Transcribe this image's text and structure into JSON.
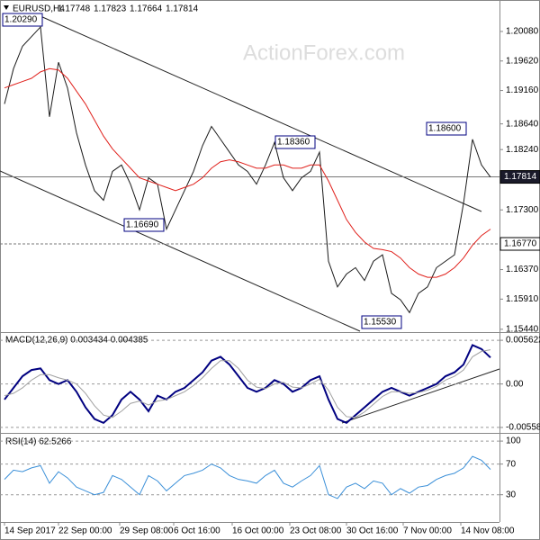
{
  "chart_data": [
    {
      "type": "line",
      "title": "EURUSD,H4",
      "quote": [
        "1.17748",
        "1.17823",
        "1.17664",
        "1.17814"
      ],
      "watermark": "ActionForex.com",
      "series": [
        {
          "color": "#1a1a1a",
          "values": [
            1.1895,
            1.195,
            1.1985,
            1.2,
            1.2015,
            1.1875,
            1.196,
            1.192,
            1.185,
            1.18,
            1.176,
            1.1745,
            1.179,
            1.18,
            1.177,
            1.173,
            1.178,
            1.177,
            1.17,
            1.173,
            1.176,
            1.179,
            1.183,
            1.186,
            1.184,
            1.182,
            1.18,
            1.179,
            1.177,
            1.18,
            1.1835,
            1.178,
            1.176,
            1.178,
            1.179,
            1.182,
            1.165,
            1.161,
            1.163,
            1.164,
            1.162,
            1.165,
            1.166,
            1.16,
            1.159,
            1.157,
            1.16,
            1.161,
            1.164,
            1.165,
            1.166,
            1.174,
            1.184,
            1.18,
            1.1781
          ]
        },
        {
          "color": "#e0201b",
          "values": [
            1.192,
            1.1925,
            1.193,
            1.1935,
            1.1945,
            1.195,
            1.1948,
            1.1935,
            1.1915,
            1.1895,
            1.187,
            1.1845,
            1.1825,
            1.181,
            1.1795,
            1.178,
            1.1775,
            1.177,
            1.1765,
            1.176,
            1.1765,
            1.177,
            1.178,
            1.1795,
            1.1805,
            1.1808,
            1.1805,
            1.18,
            1.1795,
            1.1795,
            1.18,
            1.18,
            1.1795,
            1.1795,
            1.18,
            1.18,
            1.1775,
            1.1745,
            1.1715,
            1.1695,
            1.168,
            1.167,
            1.1668,
            1.1665,
            1.1655,
            1.164,
            1.163,
            1.1625,
            1.1625,
            1.163,
            1.164,
            1.1655,
            1.1675,
            1.169,
            1.17
          ]
        }
      ],
      "ylim": [
        1.1541,
        1.205
      ],
      "yticks": [
        {
          "value": 1.2008,
          "label": "1.20080"
        },
        {
          "value": 1.1962,
          "label": "1.19620"
        },
        {
          "value": 1.1916,
          "label": "1.19160"
        },
        {
          "value": 1.1864,
          "label": "1.18640"
        },
        {
          "value": 1.1824,
          "label": "1.18240"
        },
        {
          "value": 1.173,
          "label": "1.17300"
        },
        {
          "value": 1.1637,
          "label": "1.16370"
        },
        {
          "value": 1.1591,
          "label": "1.15910"
        },
        {
          "value": 1.1544,
          "label": "1.15440"
        }
      ],
      "levels": [
        {
          "value": 1.17814,
          "label": "1.17814"
        },
        {
          "value": 1.1677,
          "label": "1.16770"
        }
      ],
      "annotations": [
        "1.20290",
        "1.16690",
        "1.18360",
        "1.18600",
        "1.15530"
      ]
    },
    {
      "type": "line",
      "title": "MACD(12,26,9) 0.003434 0.004385",
      "series": [
        {
          "color": "#000080",
          "values": [
            -0.002,
            -0.0005,
            0.001,
            0.0018,
            0.002,
            0.0005,
            0.0,
            0.0005,
            -0.001,
            -0.003,
            -0.0045,
            -0.005,
            -0.004,
            -0.002,
            -0.001,
            -0.002,
            -0.0035,
            -0.0015,
            -0.002,
            -0.001,
            -0.0005,
            0.0005,
            0.0015,
            0.003,
            0.0035,
            0.0025,
            0.001,
            -0.0005,
            -0.001,
            -0.0005,
            0.0005,
            0.0,
            -0.001,
            -0.0005,
            0.0005,
            0.001,
            -0.002,
            -0.0045,
            -0.005,
            -0.004,
            -0.003,
            -0.002,
            -0.001,
            -0.0005,
            -0.001,
            -0.0015,
            -0.001,
            -0.0005,
            0.0,
            0.001,
            0.0015,
            0.0025,
            0.005,
            0.0045,
            0.0034
          ]
        },
        {
          "color": "#a0a0a0",
          "values": [
            -0.0015,
            -0.0012,
            -0.0005,
            0.0005,
            0.0012,
            0.0012,
            0.0008,
            0.0005,
            0.0,
            -0.0012,
            -0.0028,
            -0.004,
            -0.0043,
            -0.0035,
            -0.0025,
            -0.0022,
            -0.0027,
            -0.0022,
            -0.002,
            -0.0015,
            -0.001,
            -0.0002,
            0.0008,
            0.002,
            0.003,
            0.003,
            0.002,
            0.0005,
            -0.0004,
            -0.0006,
            0.0,
            0.0002,
            -0.0004,
            -0.0005,
            0.0,
            0.0006,
            -0.0008,
            -0.003,
            -0.0042,
            -0.0043,
            -0.0036,
            -0.0026,
            -0.0016,
            -0.001,
            -0.001,
            -0.0012,
            -0.0011,
            -0.0008,
            -0.0003,
            0.0005,
            0.001,
            0.0018,
            0.0035,
            0.0042,
            0.0044
          ]
        }
      ],
      "ylim": [
        -0.00629,
        0.00656
      ],
      "yticks": [
        0.005622,
        {
          "value": 0,
          "label": "0.00"
        },
        -0.005588
      ]
    },
    {
      "type": "line",
      "title": "RSI(14) 62.5266",
      "series": [
        {
          "color": "#3a8fd8",
          "values": [
            50,
            62,
            60,
            65,
            68,
            45,
            60,
            52,
            40,
            35,
            30,
            33,
            55,
            50,
            40,
            30,
            55,
            48,
            35,
            45,
            55,
            58,
            62,
            70,
            65,
            55,
            50,
            48,
            45,
            55,
            62,
            45,
            40,
            48,
            55,
            68,
            30,
            25,
            40,
            45,
            38,
            48,
            45,
            30,
            38,
            32,
            40,
            42,
            50,
            55,
            58,
            65,
            80,
            75,
            63
          ]
        }
      ],
      "ylim": [
        -5.6,
        109.5
      ],
      "yticks": [
        100,
        70,
        30
      ],
      "x_labels": [
        "14 Sep 2017",
        "22 Sep 00:00",
        "29 Sep 08:00",
        "6 Oct 16:00",
        "16 Oct 00:00",
        "23 Oct 08:00",
        "30 Oct 16:00",
        "7 Nov 00:00",
        "14 Nov 08:00"
      ]
    }
  ]
}
